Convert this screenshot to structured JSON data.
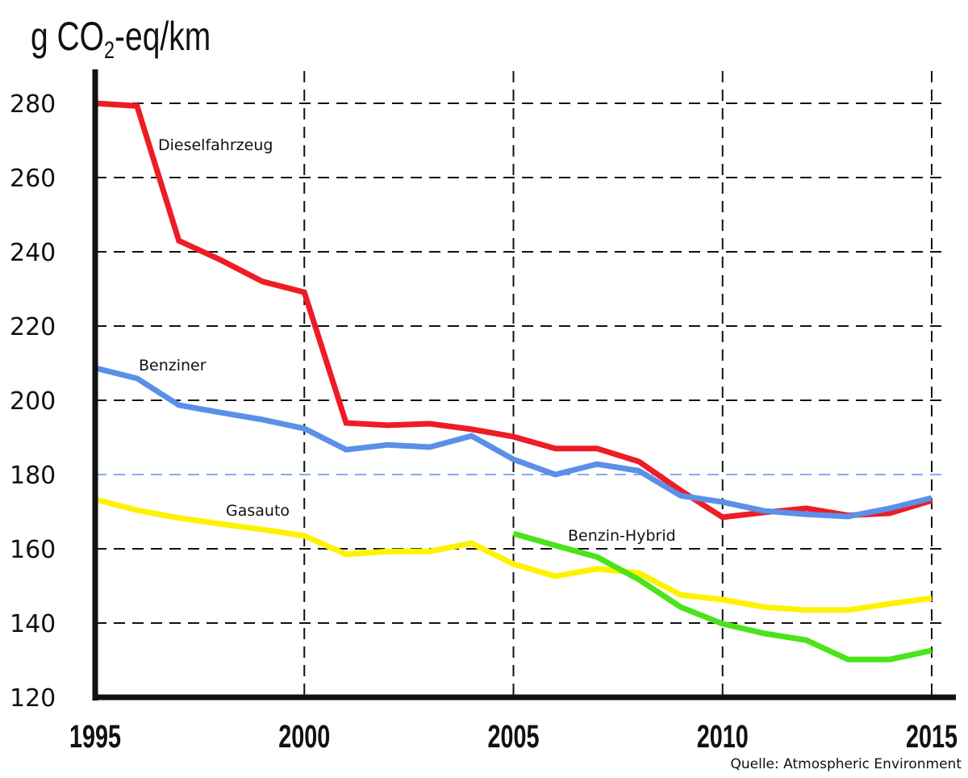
{
  "chart_data": {
    "type": "line",
    "title": "",
    "ylabel": "g CO2-eq/km",
    "ylabel_parts": {
      "pre": "g CO",
      "sub": "2",
      "post": "-eq/km"
    },
    "xlabel": "",
    "xlim": [
      1995,
      2015
    ],
    "ylim": [
      120,
      290
    ],
    "xticks": [
      1995,
      2000,
      2005,
      2010,
      2015
    ],
    "yticks": [
      120,
      140,
      160,
      180,
      200,
      220,
      240,
      260,
      280
    ],
    "grid": true,
    "reference_line": {
      "y": 180,
      "color": "#5b8fe8"
    },
    "source": "Quelle: Atmospheric Environment",
    "series": [
      {
        "name": "Dieselfahrzeug",
        "color": "#ee1c24",
        "x": [
          1995,
          1996,
          1997,
          1998,
          1999,
          2000,
          2001,
          2002,
          2003,
          2004,
          2005,
          2006,
          2007,
          2008,
          2009,
          2010,
          2011,
          2012,
          2013,
          2014,
          2015
        ],
        "values": [
          280,
          279.3,
          243,
          237.8,
          232,
          229.1,
          193.9,
          193.3,
          193.7,
          192.2,
          190.2,
          187,
          187,
          183.5,
          175.7,
          168.5,
          169.8,
          170.9,
          169,
          169.6,
          173
        ]
      },
      {
        "name": "Benziner",
        "color": "#5b8fe8",
        "x": [
          1995,
          1996,
          1997,
          1998,
          1999,
          2000,
          2001,
          2002,
          2003,
          2004,
          2005,
          2006,
          2007,
          2008,
          2009,
          2010,
          2011,
          2012,
          2013,
          2014,
          2015
        ],
        "values": [
          208.7,
          205.9,
          198.7,
          196.7,
          194.8,
          192.4,
          186.7,
          188,
          187.4,
          190.4,
          184.1,
          180,
          182.8,
          181,
          174.3,
          172.6,
          170.2,
          169.3,
          168.7,
          170.9,
          173.7
        ]
      },
      {
        "name": "Gasauto",
        "color": "#fff200",
        "x": [
          1995,
          1996,
          1997,
          1998,
          1999,
          2000,
          2001,
          2002,
          2003,
          2004,
          2005,
          2006,
          2007,
          2008,
          2009,
          2010,
          2011,
          2012,
          2013,
          2014,
          2015
        ],
        "values": [
          173.3,
          170.4,
          168.3,
          166.7,
          165.2,
          163.5,
          158.5,
          159.3,
          159.3,
          161.5,
          155.9,
          152.6,
          154.6,
          153.5,
          147.6,
          146.3,
          144.3,
          143.5,
          143.5,
          145.2,
          146.7
        ]
      },
      {
        "name": "Benzin-Hybrid",
        "color": "#4be31a",
        "x": [
          2005,
          2006,
          2007,
          2008,
          2009,
          2010,
          2011,
          2012,
          2013,
          2014,
          2015
        ],
        "values": [
          164.1,
          160.9,
          157.8,
          151.7,
          144.3,
          139.8,
          137.2,
          135.4,
          130.2,
          130.2,
          132.6
        ]
      }
    ]
  }
}
